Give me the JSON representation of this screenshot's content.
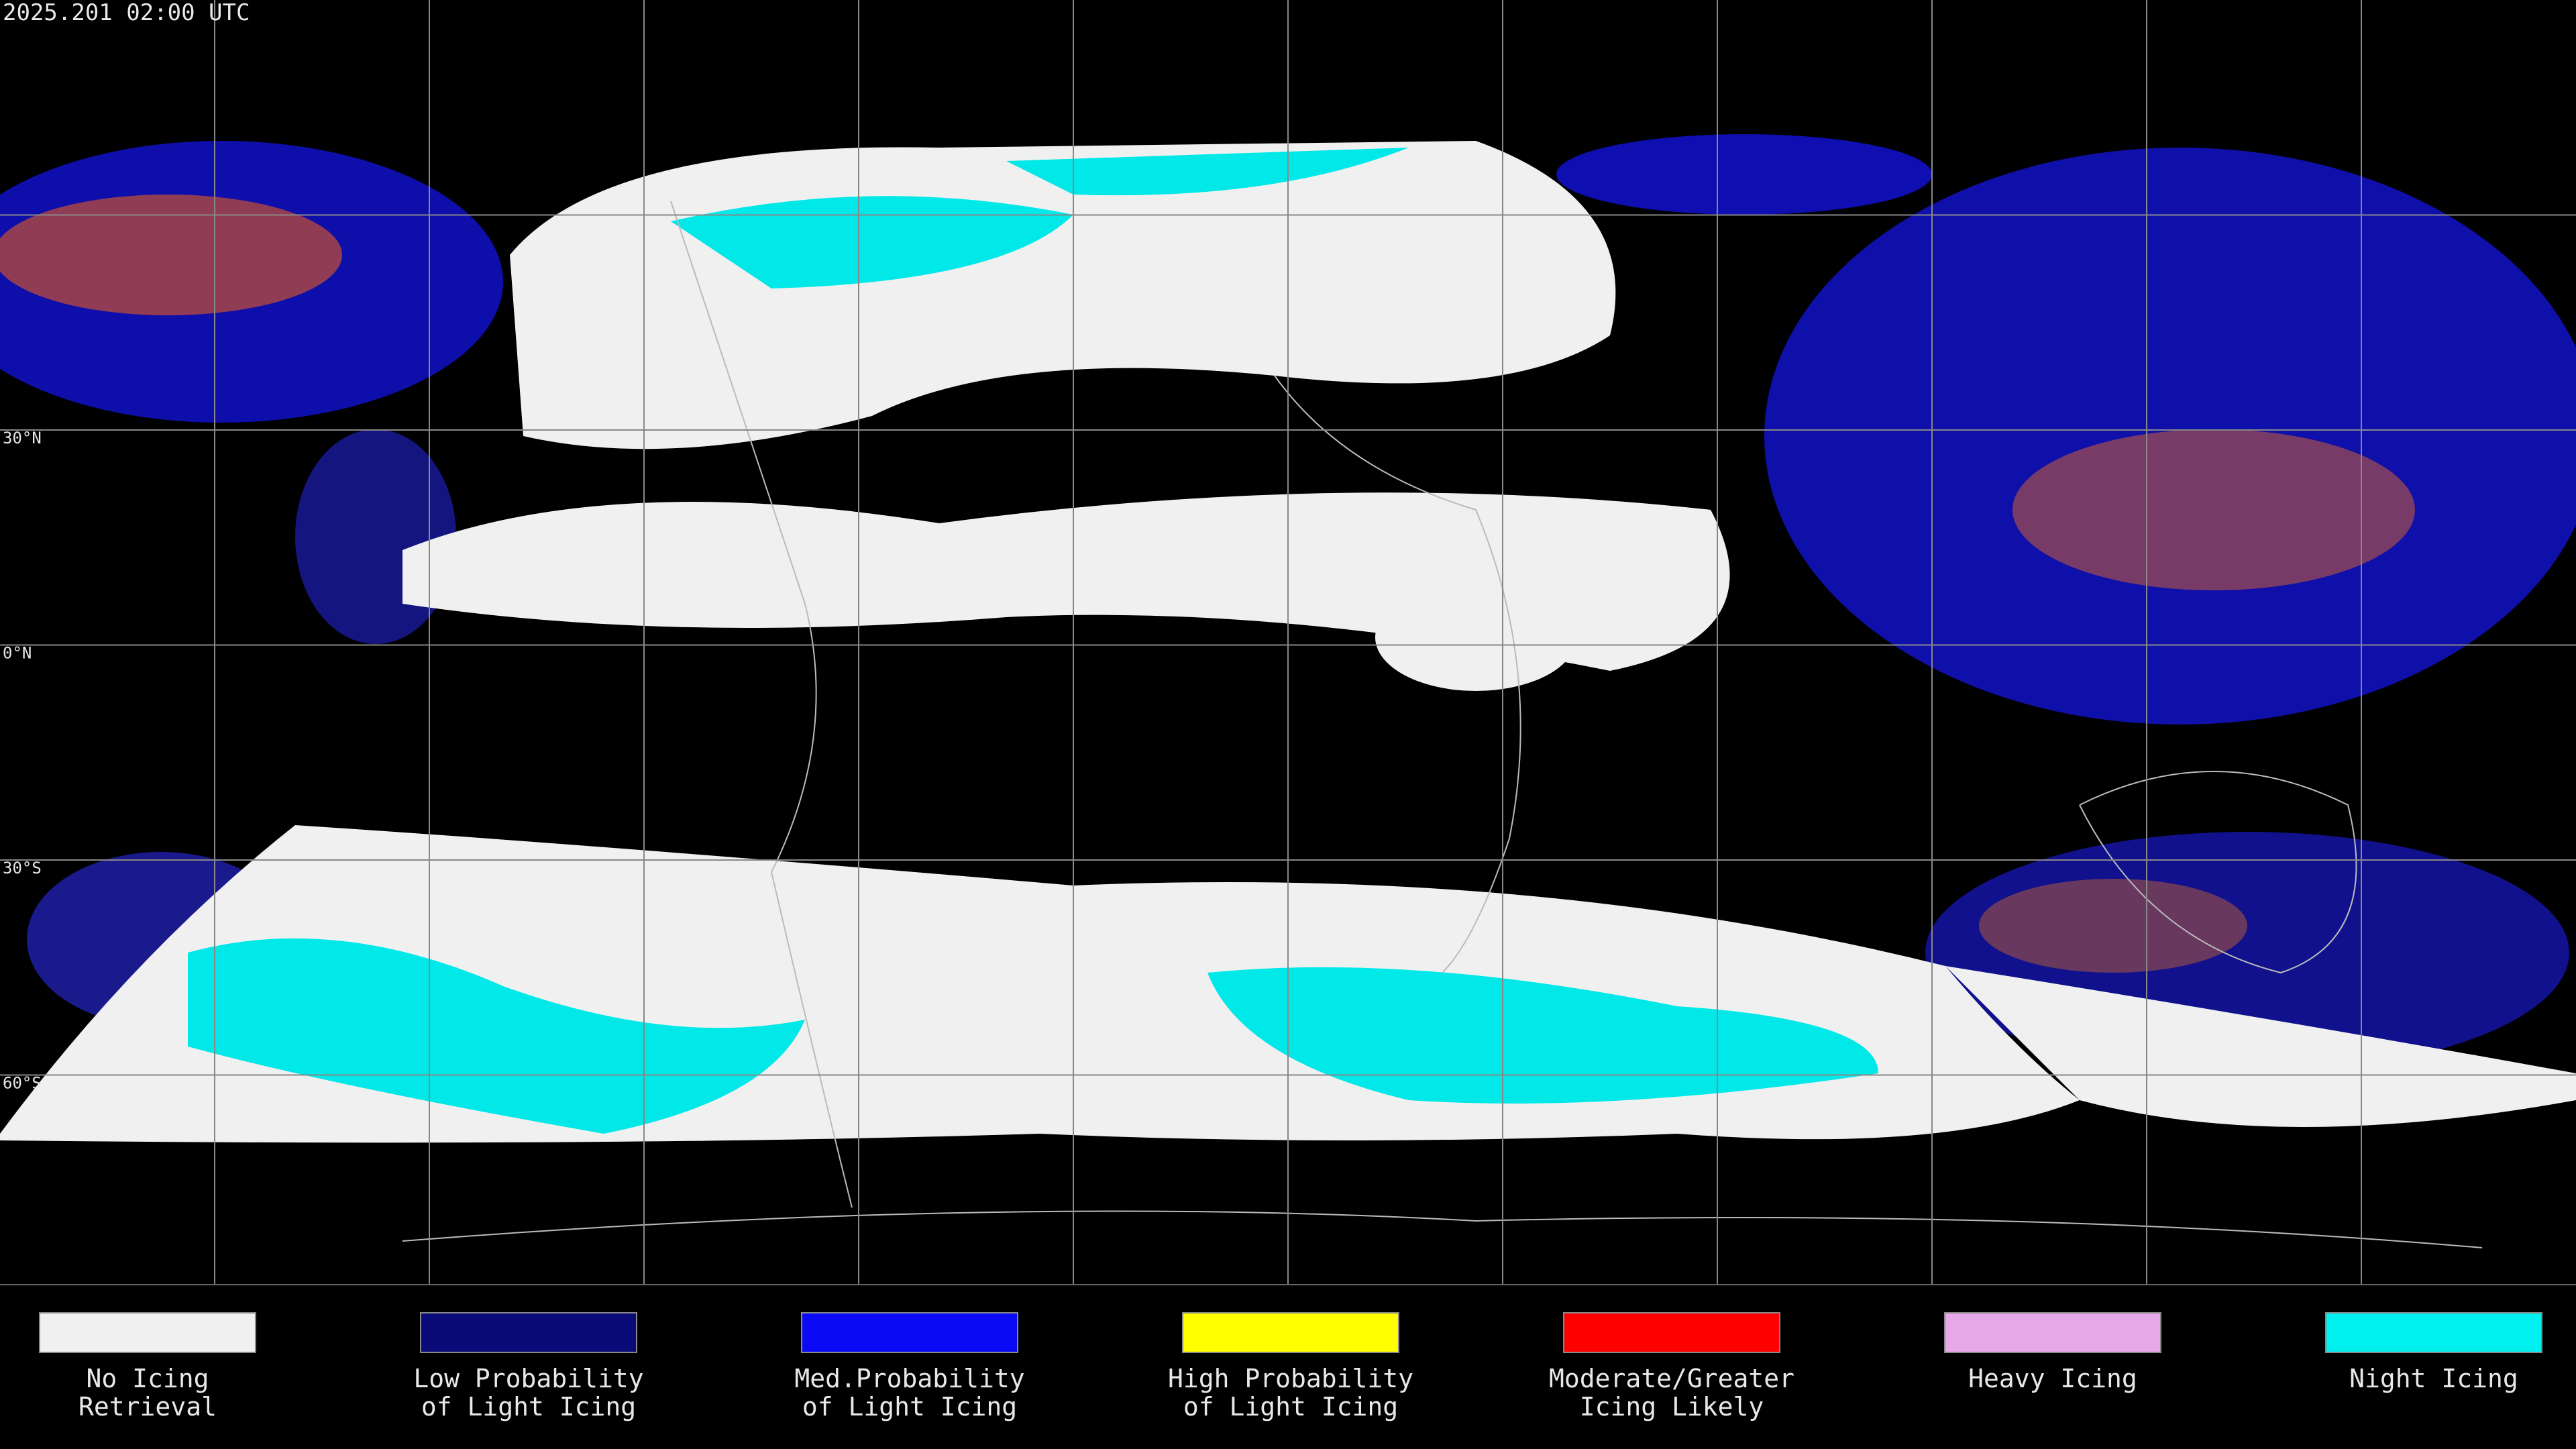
{
  "header": {
    "timestamp": "2025.201 02:00 UTC"
  },
  "latitude_labels": [
    "30°N",
    "0°N",
    "30°S",
    "60°S"
  ],
  "legend": [
    {
      "lines": [
        "No Icing",
        "Retrieval"
      ],
      "color": "#f0f0f0"
    },
    {
      "lines": [
        "Low Probability",
        "of Light Icing"
      ],
      "color": "#0a0a78"
    },
    {
      "lines": [
        "Med.Probability",
        "of Light Icing"
      ],
      "color": "#0a0af5"
    },
    {
      "lines": [
        "High Probability",
        "of Light Icing"
      ],
      "color": "#ffff00"
    },
    {
      "lines": [
        "Moderate/Greater",
        "Icing Likely"
      ],
      "color": "#ff0000"
    },
    {
      "lines": [
        "Heavy Icing"
      ],
      "color": "#e6a8e6"
    },
    {
      "lines": [
        "Night Icing"
      ],
      "color": "#00f0f0"
    }
  ]
}
